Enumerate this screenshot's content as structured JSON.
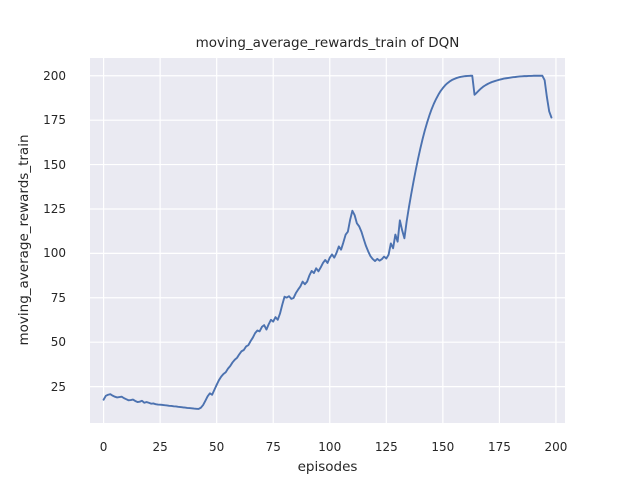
{
  "figure": {
    "title": "moving_average_rewards_train of DQN",
    "xlabel": "episodes",
    "ylabel": "moving_average_rewards_train"
  },
  "chart_data": {
    "type": "line",
    "title": "moving_average_rewards_train of DQN",
    "xlabel": "episodes",
    "ylabel": "moving_average_rewards_train",
    "xlim": [
      -6,
      204
    ],
    "ylim": [
      4.5,
      210
    ],
    "xticks": [
      0,
      25,
      50,
      75,
      100,
      125,
      150,
      175,
      200
    ],
    "yticks": [
      25,
      50,
      75,
      100,
      125,
      150,
      175,
      200
    ],
    "grid": true,
    "legend_position": "none",
    "style": {
      "line_color": "#4c72b0",
      "line_width": 1.9,
      "plot_bg": "#eaeaf2",
      "grid_color": "#ffffff",
      "text_color": "#262626",
      "figure_bg": "#ffffff"
    },
    "series": [
      {
        "name": "moving_average_rewards_train",
        "points": [
          [
            0,
            17.6
          ],
          [
            1,
            19.8
          ],
          [
            2,
            20.4
          ],
          [
            3,
            20.7
          ],
          [
            4,
            19.9
          ],
          [
            5,
            19.3
          ],
          [
            6,
            18.9
          ],
          [
            7,
            19.1
          ],
          [
            8,
            19.3
          ],
          [
            9,
            18.5
          ],
          [
            10,
            17.9
          ],
          [
            11,
            17.3
          ],
          [
            12,
            17.4
          ],
          [
            13,
            17.7
          ],
          [
            14,
            16.9
          ],
          [
            15,
            16.3
          ],
          [
            16,
            16.5
          ],
          [
            17,
            17.0
          ],
          [
            18,
            15.9
          ],
          [
            19,
            16.3
          ],
          [
            20,
            15.9
          ],
          [
            21,
            15.4
          ],
          [
            22,
            15.5
          ],
          [
            23,
            15.1
          ],
          [
            24,
            14.9
          ],
          [
            25,
            14.8
          ],
          [
            26,
            14.7
          ],
          [
            27,
            14.5
          ],
          [
            28,
            14.4
          ],
          [
            29,
            14.2
          ],
          [
            30,
            14.1
          ],
          [
            31,
            13.9
          ],
          [
            32,
            13.8
          ],
          [
            33,
            13.6
          ],
          [
            34,
            13.5
          ],
          [
            35,
            13.3
          ],
          [
            36,
            13.2
          ],
          [
            37,
            13.0
          ],
          [
            38,
            12.9
          ],
          [
            39,
            12.8
          ],
          [
            40,
            12.6
          ],
          [
            41,
            12.5
          ],
          [
            42,
            12.4
          ],
          [
            43,
            13.1
          ],
          [
            44,
            14.6
          ],
          [
            45,
            17.0
          ],
          [
            46,
            19.5
          ],
          [
            47,
            21.2
          ],
          [
            48,
            20.4
          ],
          [
            49,
            23.2
          ],
          [
            50,
            26.0
          ],
          [
            51,
            28.6
          ],
          [
            52,
            30.6
          ],
          [
            53,
            32.1
          ],
          [
            54,
            33.1
          ],
          [
            55,
            35.1
          ],
          [
            56,
            36.6
          ],
          [
            57,
            38.6
          ],
          [
            58,
            40.1
          ],
          [
            59,
            41.2
          ],
          [
            60,
            43.2
          ],
          [
            61,
            44.9
          ],
          [
            62,
            45.6
          ],
          [
            63,
            47.6
          ],
          [
            64,
            48.3
          ],
          [
            65,
            50.6
          ],
          [
            66,
            52.6
          ],
          [
            67,
            55.1
          ],
          [
            68,
            56.6
          ],
          [
            69,
            56.1
          ],
          [
            70,
            58.6
          ],
          [
            71,
            59.6
          ],
          [
            72,
            57.1
          ],
          [
            73,
            60.1
          ],
          [
            74,
            62.6
          ],
          [
            75,
            61.6
          ],
          [
            76,
            64.1
          ],
          [
            77,
            62.6
          ],
          [
            78,
            66.1
          ],
          [
            79,
            71.1
          ],
          [
            80,
            75.6
          ],
          [
            81,
            75.1
          ],
          [
            82,
            75.9
          ],
          [
            83,
            74.4
          ],
          [
            84,
            74.9
          ],
          [
            85,
            77.6
          ],
          [
            86,
            79.6
          ],
          [
            87,
            81.4
          ],
          [
            88,
            84.1
          ],
          [
            89,
            82.6
          ],
          [
            90,
            84.1
          ],
          [
            91,
            87.6
          ],
          [
            92,
            90.1
          ],
          [
            93,
            88.9
          ],
          [
            94,
            91.6
          ],
          [
            95,
            89.9
          ],
          [
            96,
            92.1
          ],
          [
            97,
            94.6
          ],
          [
            98,
            96.3
          ],
          [
            99,
            94.6
          ],
          [
            100,
            97.6
          ],
          [
            101,
            99.4
          ],
          [
            102,
            97.6
          ],
          [
            103,
            100.3
          ],
          [
            104,
            103.9
          ],
          [
            105,
            102.1
          ],
          [
            106,
            106.1
          ],
          [
            107,
            110.5
          ],
          [
            108,
            112.2
          ],
          [
            109,
            118.9
          ],
          [
            110,
            124.0
          ],
          [
            111,
            121.5
          ],
          [
            112,
            116.9
          ],
          [
            113,
            115.2
          ],
          [
            114,
            112.2
          ],
          [
            115,
            108.1
          ],
          [
            116,
            104.2
          ],
          [
            117,
            101.1
          ],
          [
            118,
            98.4
          ],
          [
            119,
            96.8
          ],
          [
            120,
            95.7
          ],
          [
            121,
            96.9
          ],
          [
            122,
            95.9
          ],
          [
            123,
            96.7
          ],
          [
            124,
            98.2
          ],
          [
            125,
            97.1
          ],
          [
            126,
            99.2
          ],
          [
            127,
            105.6
          ],
          [
            128,
            102.9
          ],
          [
            129,
            110.6
          ],
          [
            130,
            106.6
          ],
          [
            131,
            118.6
          ],
          [
            132,
            113.0
          ],
          [
            133,
            108.5
          ],
          [
            134,
            118.0
          ],
          [
            135,
            126.0
          ],
          [
            136,
            133.3
          ],
          [
            137,
            140.2
          ],
          [
            138,
            146.8
          ],
          [
            139,
            153.0
          ],
          [
            140,
            158.8
          ],
          [
            141,
            164.2
          ],
          [
            142,
            169.1
          ],
          [
            143,
            173.5
          ],
          [
            144,
            177.5
          ],
          [
            145,
            181.1
          ],
          [
            146,
            184.2
          ],
          [
            147,
            186.9
          ],
          [
            148,
            189.3
          ],
          [
            149,
            191.4
          ],
          [
            150,
            193.1
          ],
          [
            151,
            194.6
          ],
          [
            152,
            195.8
          ],
          [
            153,
            196.8
          ],
          [
            154,
            197.6
          ],
          [
            155,
            198.2
          ],
          [
            156,
            198.7
          ],
          [
            157,
            199.1
          ],
          [
            158,
            199.4
          ],
          [
            159,
            199.6
          ],
          [
            160,
            199.8
          ],
          [
            161,
            199.9
          ],
          [
            162,
            200.0
          ],
          [
            163,
            200.0
          ],
          [
            164,
            189.3
          ],
          [
            165,
            190.5
          ],
          [
            166,
            191.8
          ],
          [
            167,
            193.0
          ],
          [
            168,
            194.0
          ],
          [
            169,
            194.8
          ],
          [
            170,
            195.5
          ],
          [
            171,
            196.1
          ],
          [
            172,
            196.6
          ],
          [
            173,
            197.0
          ],
          [
            174,
            197.4
          ],
          [
            175,
            197.8
          ],
          [
            176,
            198.1
          ],
          [
            177,
            198.4
          ],
          [
            178,
            198.6
          ],
          [
            179,
            198.8
          ],
          [
            180,
            199.0
          ],
          [
            181,
            199.2
          ],
          [
            182,
            199.3
          ],
          [
            183,
            199.5
          ],
          [
            184,
            199.6
          ],
          [
            185,
            199.7
          ],
          [
            186,
            199.8
          ],
          [
            187,
            199.8
          ],
          [
            188,
            199.9
          ],
          [
            189,
            199.9
          ],
          [
            190,
            200.0
          ],
          [
            191,
            200.0
          ],
          [
            192,
            200.0
          ],
          [
            193,
            200.0
          ],
          [
            194,
            200.0
          ],
          [
            195,
            197.5
          ],
          [
            196,
            188.0
          ],
          [
            197,
            180.0
          ],
          [
            198,
            176.5
          ]
        ]
      }
    ]
  }
}
